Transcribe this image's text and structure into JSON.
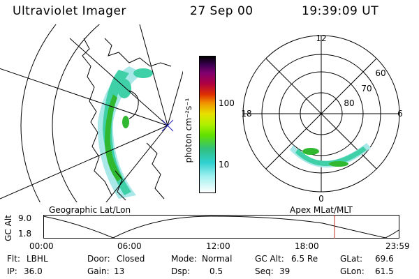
{
  "header": {
    "instrument": "Ultraviolet Imager",
    "date": "27 Sep 00",
    "time": "19:39:09 UT"
  },
  "colorbar": {
    "unit_label": "photon cm⁻²s⁻¹",
    "ticks": [
      "100",
      "10"
    ]
  },
  "polar_plot": {
    "mlt_labels": [
      "12",
      "18",
      "6",
      "0"
    ],
    "mlat_labels": [
      "60",
      "70",
      "80"
    ]
  },
  "captions": {
    "left": "Geographic Lat/Lon",
    "right": "Apex MLat/MLT"
  },
  "orbit": {
    "axis_label": "GC Alt",
    "y_ticks": [
      "9.0",
      "1.8"
    ],
    "x_ticks": [
      "00:00",
      "06:00",
      "12:00",
      "18:00",
      "23:59"
    ],
    "current_time_fraction": 0.818
  },
  "footer": {
    "row1": [
      {
        "label": "Flt:",
        "value": "LBHL"
      },
      {
        "label": "Door:",
        "value": "Closed"
      },
      {
        "label": "Mode:",
        "value": "Normal"
      },
      {
        "label": "GC Alt:",
        "value": "6.5 Re"
      },
      {
        "label": "GLat:",
        "value": "69.6"
      }
    ],
    "row2": [
      {
        "label": "IP:",
        "value": "36.0"
      },
      {
        "label": "Gain:",
        "value": "13"
      },
      {
        "label": "Dsp:",
        "value": "0.5"
      },
      {
        "label": "Seq:",
        "value": "39"
      },
      {
        "label": "GLon:",
        "value": "61.5"
      }
    ]
  },
  "colors": {
    "aurora_faint": "#a8e8e8",
    "aurora_mid": "#40d0a8",
    "aurora_bright": "#30b830",
    "marker": "#c03020"
  }
}
